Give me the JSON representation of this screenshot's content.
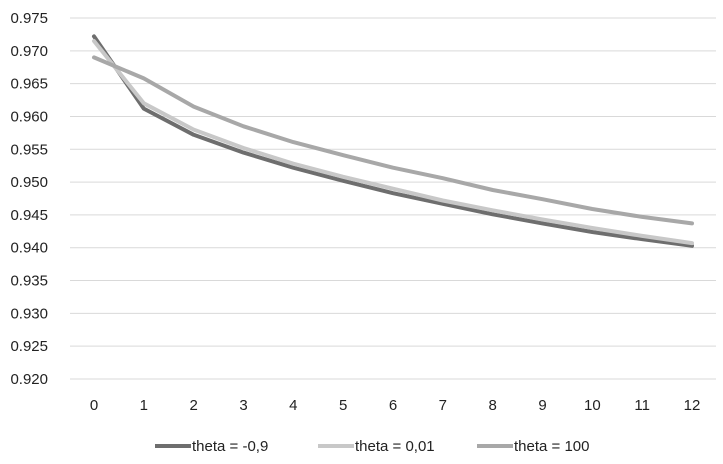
{
  "chart_data": {
    "type": "line",
    "x": [
      0,
      1,
      2,
      3,
      4,
      5,
      6,
      7,
      8,
      9,
      10,
      11,
      12
    ],
    "ylim": [
      0.92,
      0.975
    ],
    "y_ticks": [
      "0.920",
      "0.925",
      "0.930",
      "0.935",
      "0.940",
      "0.945",
      "0.950",
      "0.955",
      "0.960",
      "0.965",
      "0.970",
      "0.975"
    ],
    "x_ticks": [
      "0",
      "1",
      "2",
      "3",
      "4",
      "5",
      "6",
      "7",
      "8",
      "9",
      "10",
      "11",
      "12"
    ],
    "grid": true,
    "legend_position": "bottom",
    "series": [
      {
        "name": "theta = -0,9",
        "color": "#6e6e6e",
        "values": [
          0.9722,
          0.9612,
          0.9572,
          0.9545,
          0.9522,
          0.9502,
          0.9483,
          0.9467,
          0.9451,
          0.9437,
          0.9424,
          0.9413,
          0.9403
        ]
      },
      {
        "name": "theta = 0,01",
        "color": "#c8c8c8",
        "values": [
          0.9715,
          0.962,
          0.958,
          0.9552,
          0.9528,
          0.9508,
          0.949,
          0.9472,
          0.9457,
          0.9443,
          0.943,
          0.9418,
          0.9407
        ]
      },
      {
        "name": "theta = 100",
        "color": "#a8a8a8",
        "values": [
          0.969,
          0.9658,
          0.9615,
          0.9585,
          0.9561,
          0.9541,
          0.9522,
          0.9506,
          0.9488,
          0.9474,
          0.9459,
          0.9447,
          0.9437
        ]
      }
    ]
  }
}
